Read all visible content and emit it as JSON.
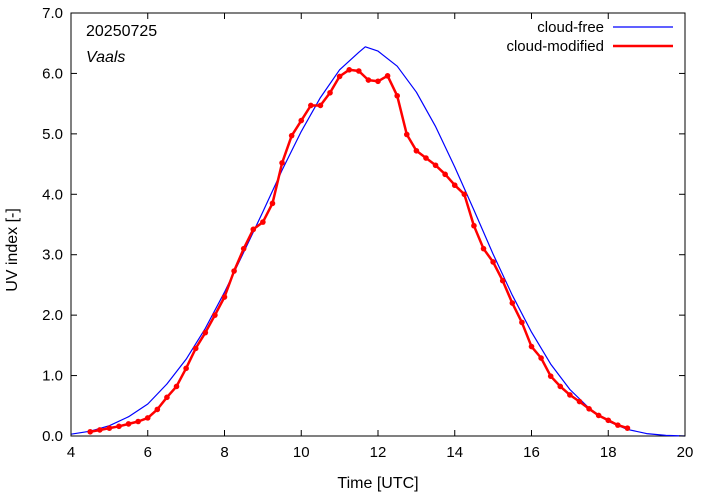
{
  "chart_data": {
    "type": "line",
    "title": "",
    "annotations": {
      "date": "20250725",
      "location": "Vaals"
    },
    "xlabel": "Time  [UTC]",
    "ylabel": "UV index  [-]",
    "xlim": [
      4,
      20
    ],
    "ylim": [
      0,
      7
    ],
    "xticks": [
      "4",
      "6",
      "8",
      "10",
      "12",
      "14",
      "16",
      "18",
      "20"
    ],
    "yticks": [
      "0.0",
      "1.0",
      "2.0",
      "3.0",
      "4.0",
      "5.0",
      "6.0",
      "7.0"
    ],
    "grid": false,
    "legend_position": "top-right",
    "colors": {
      "cloud_free": "#0000ff",
      "cloud_modified": "#ff0000"
    },
    "series": [
      {
        "name": "cloud-free",
        "x": [
          4.0,
          4.5,
          5.0,
          5.5,
          6.0,
          6.5,
          7.0,
          7.5,
          8.0,
          8.5,
          9.0,
          9.5,
          10.0,
          10.5,
          11.0,
          11.5,
          11.67,
          12.0,
          12.5,
          13.0,
          13.5,
          14.0,
          14.5,
          15.0,
          15.5,
          16.0,
          16.5,
          17.0,
          17.5,
          18.0,
          18.5,
          19.0,
          19.5,
          20.0
        ],
        "y": [
          0.03,
          0.08,
          0.17,
          0.32,
          0.53,
          0.86,
          1.27,
          1.78,
          2.38,
          3.04,
          3.71,
          4.4,
          5.04,
          5.6,
          6.06,
          6.35,
          6.44,
          6.37,
          6.12,
          5.69,
          5.12,
          4.45,
          3.74,
          3.01,
          2.33,
          1.72,
          1.19,
          0.77,
          0.46,
          0.24,
          0.11,
          0.04,
          0.01,
          0.0
        ]
      },
      {
        "name": "cloud-modified",
        "x": [
          4.5,
          4.75,
          5.0,
          5.25,
          5.5,
          5.75,
          6.0,
          6.25,
          6.5,
          6.75,
          7.0,
          7.25,
          7.5,
          7.75,
          8.0,
          8.25,
          8.5,
          8.75,
          9.0,
          9.25,
          9.5,
          9.75,
          10.0,
          10.25,
          10.5,
          10.75,
          11.0,
          11.25,
          11.5,
          11.75,
          12.0,
          12.25,
          12.5,
          12.75,
          13.0,
          13.25,
          13.5,
          13.75,
          14.0,
          14.25,
          14.5,
          14.75,
          15.0,
          15.25,
          15.5,
          15.75,
          16.0,
          16.25,
          16.5,
          16.75,
          17.0,
          17.25,
          17.5,
          17.75,
          18.0,
          18.25,
          18.5
        ],
        "y": [
          0.07,
          0.1,
          0.13,
          0.16,
          0.2,
          0.24,
          0.3,
          0.44,
          0.64,
          0.82,
          1.12,
          1.45,
          1.71,
          2.0,
          2.3,
          2.73,
          3.1,
          3.42,
          3.54,
          3.85,
          4.52,
          4.97,
          5.22,
          5.47,
          5.47,
          5.68,
          5.95,
          6.06,
          6.04,
          5.89,
          5.87,
          5.96,
          5.63,
          4.99,
          4.72,
          4.6,
          4.48,
          4.33,
          4.15,
          4.0,
          3.48,
          3.1,
          2.88,
          2.57,
          2.2,
          1.88,
          1.48,
          1.29,
          0.99,
          0.82,
          0.68,
          0.57,
          0.45,
          0.34,
          0.26,
          0.18,
          0.13
        ]
      }
    ]
  }
}
